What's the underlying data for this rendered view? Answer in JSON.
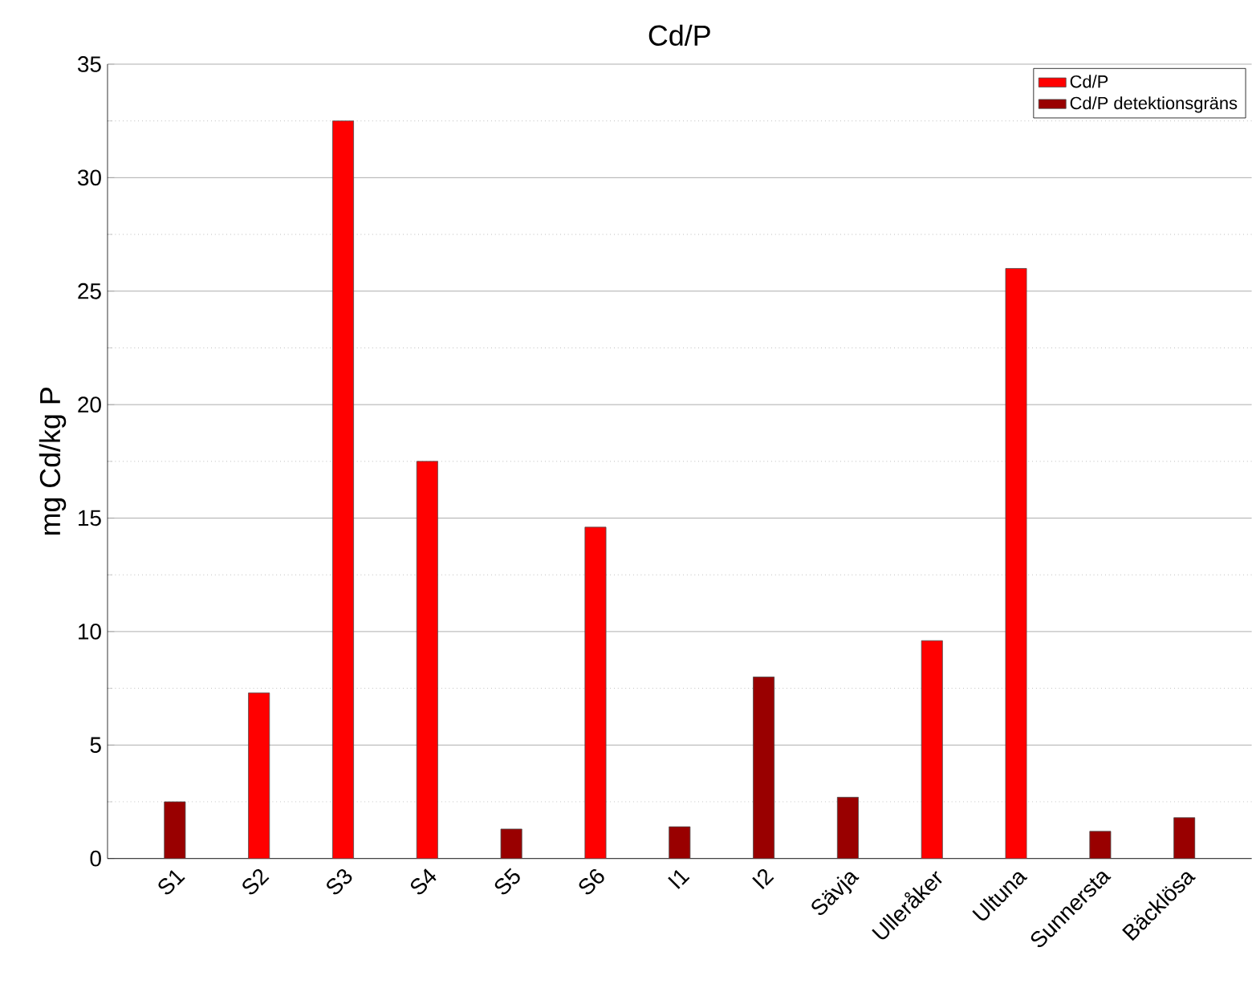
{
  "chart_data": {
    "type": "bar",
    "title": "Cd/P",
    "ylabel": "mg Cd/kg P",
    "categories": [
      "S1",
      "S2",
      "S3",
      "S4",
      "S5",
      "S6",
      "I1",
      "I2",
      "Sävja",
      "Ulleråker",
      "Ultuna",
      "Sunnersta",
      "Bäcklösa"
    ],
    "series": [
      {
        "name": "Cd/P",
        "color": "#ff0000",
        "values": [
          null,
          7.3,
          32.5,
          17.5,
          null,
          14.6,
          null,
          null,
          null,
          9.6,
          26.0,
          null,
          null
        ]
      },
      {
        "name": "Cd/P detektionsgräns",
        "color": "#990000",
        "values": [
          2.5,
          null,
          null,
          null,
          1.3,
          null,
          1.4,
          8.0,
          2.7,
          null,
          null,
          1.2,
          1.8
        ]
      }
    ],
    "ylim": [
      0,
      35
    ],
    "yticks": [
      0,
      5,
      10,
      15,
      20,
      25,
      30,
      35
    ],
    "grid": "y",
    "legend": "top right"
  }
}
